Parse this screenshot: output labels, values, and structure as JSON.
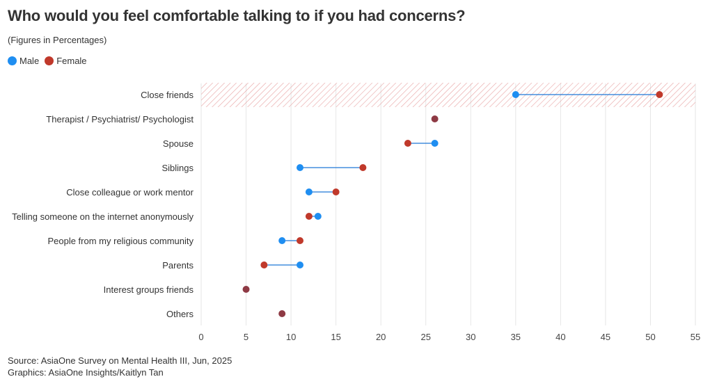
{
  "header": {
    "title": "Who would you feel comfortable talking to if you had concerns?",
    "subtitle": "(Figures in Percentages)"
  },
  "legend": {
    "male": "Male",
    "female": "Female"
  },
  "colors": {
    "male": "#1f8ef1",
    "female": "#c0392b",
    "overlap": "#8e3a44",
    "line": "#1f77d8",
    "highlight": "#e8a2a2"
  },
  "footer": {
    "source": "Source: AsiaOne Survey on Mental Health III, Jun, 2025",
    "graphics": "Graphics: AsiaOne Insights/Kaitlyn Tan"
  },
  "chart_data": {
    "type": "dumbbell",
    "title": "Who would you feel comfortable talking to if you had concerns?",
    "xlabel": "",
    "ylabel": "",
    "xlim": [
      0,
      55
    ],
    "xticks": [
      0,
      5,
      10,
      15,
      20,
      25,
      30,
      35,
      40,
      45,
      50,
      55
    ],
    "highlighted_category": "Close friends",
    "categories": [
      "Close friends",
      "Therapist / Psychiatrist/ Psychologist",
      "Spouse",
      "Siblings",
      "Close colleague or work mentor",
      "Telling someone on the internet anonymously",
      "People from my religious community",
      "Parents",
      "Interest groups friends",
      "Others"
    ],
    "series": [
      {
        "name": "Male",
        "values": [
          35,
          26,
          26,
          11,
          12,
          13,
          9,
          11,
          5,
          9
        ]
      },
      {
        "name": "Female",
        "values": [
          51,
          26,
          23,
          18,
          15,
          12,
          11,
          7,
          5,
          9
        ]
      }
    ]
  }
}
